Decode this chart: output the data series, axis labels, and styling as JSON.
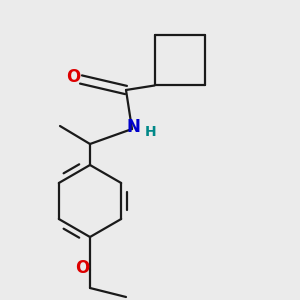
{
  "background_color": "#ebebeb",
  "bond_color": "#1a1a1a",
  "bond_width": 1.6,
  "figsize": [
    3.0,
    3.0
  ],
  "dpi": 100,
  "atoms": {
    "O_carbonyl": {
      "label": "O",
      "color": "#dd0000",
      "fontsize": 12
    },
    "N": {
      "label": "N",
      "color": "#0000cc",
      "fontsize": 12
    },
    "H": {
      "label": "H",
      "color": "#008888",
      "fontsize": 10
    },
    "O_ethoxy": {
      "label": "O",
      "color": "#dd0000",
      "fontsize": 12
    }
  }
}
